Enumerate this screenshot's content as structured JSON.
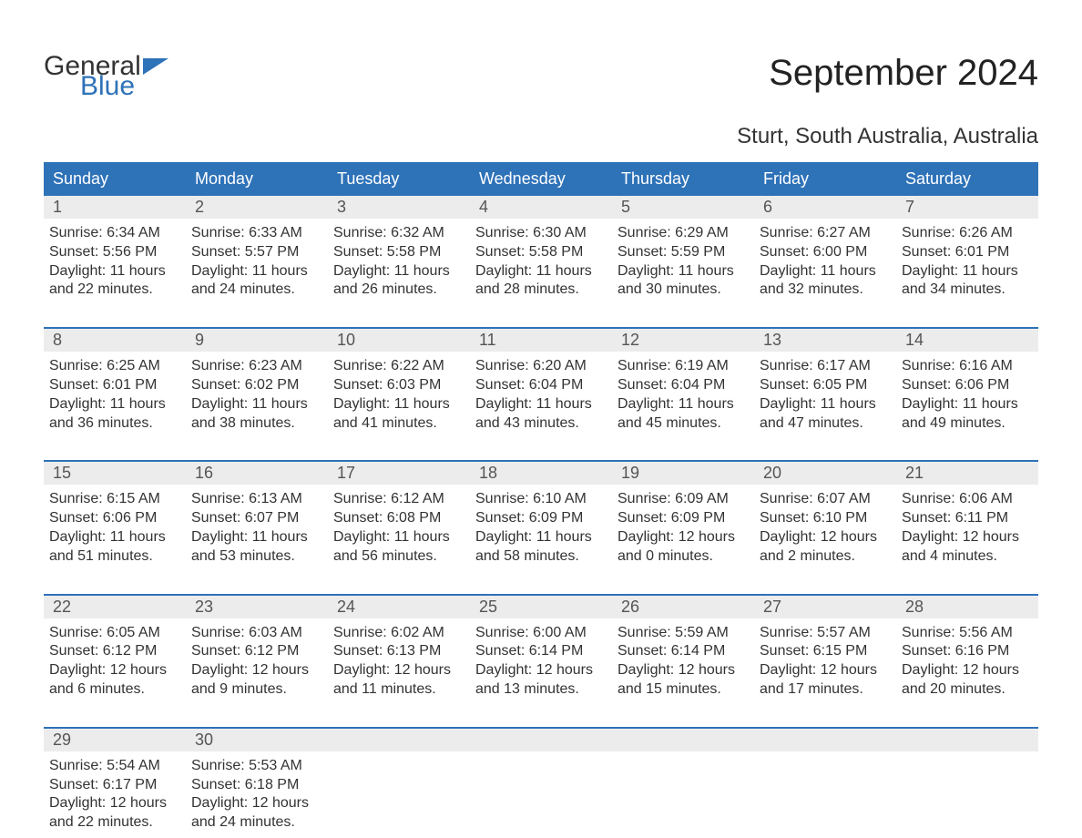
{
  "logo": {
    "text1": "General",
    "text2": "Blue"
  },
  "title": "September 2024",
  "subtitle": "Sturt, South Australia, Australia",
  "colors": {
    "header_bg": "#2e72b8",
    "header_text": "#ffffff",
    "date_bg": "#ececec",
    "date_border": "#2e72b8",
    "body_text": "#333333",
    "logo_blue": "#2e72b8",
    "background": "#ffffff"
  },
  "day_headers": [
    "Sunday",
    "Monday",
    "Tuesday",
    "Wednesday",
    "Thursday",
    "Friday",
    "Saturday"
  ],
  "weeks": [
    [
      {
        "date": "1",
        "sunrise": "Sunrise: 6:34 AM",
        "sunset": "Sunset: 5:56 PM",
        "daylight1": "Daylight: 11 hours",
        "daylight2": "and 22 minutes."
      },
      {
        "date": "2",
        "sunrise": "Sunrise: 6:33 AM",
        "sunset": "Sunset: 5:57 PM",
        "daylight1": "Daylight: 11 hours",
        "daylight2": "and 24 minutes."
      },
      {
        "date": "3",
        "sunrise": "Sunrise: 6:32 AM",
        "sunset": "Sunset: 5:58 PM",
        "daylight1": "Daylight: 11 hours",
        "daylight2": "and 26 minutes."
      },
      {
        "date": "4",
        "sunrise": "Sunrise: 6:30 AM",
        "sunset": "Sunset: 5:58 PM",
        "daylight1": "Daylight: 11 hours",
        "daylight2": "and 28 minutes."
      },
      {
        "date": "5",
        "sunrise": "Sunrise: 6:29 AM",
        "sunset": "Sunset: 5:59 PM",
        "daylight1": "Daylight: 11 hours",
        "daylight2": "and 30 minutes."
      },
      {
        "date": "6",
        "sunrise": "Sunrise: 6:27 AM",
        "sunset": "Sunset: 6:00 PM",
        "daylight1": "Daylight: 11 hours",
        "daylight2": "and 32 minutes."
      },
      {
        "date": "7",
        "sunrise": "Sunrise: 6:26 AM",
        "sunset": "Sunset: 6:01 PM",
        "daylight1": "Daylight: 11 hours",
        "daylight2": "and 34 minutes."
      }
    ],
    [
      {
        "date": "8",
        "sunrise": "Sunrise: 6:25 AM",
        "sunset": "Sunset: 6:01 PM",
        "daylight1": "Daylight: 11 hours",
        "daylight2": "and 36 minutes."
      },
      {
        "date": "9",
        "sunrise": "Sunrise: 6:23 AM",
        "sunset": "Sunset: 6:02 PM",
        "daylight1": "Daylight: 11 hours",
        "daylight2": "and 38 minutes."
      },
      {
        "date": "10",
        "sunrise": "Sunrise: 6:22 AM",
        "sunset": "Sunset: 6:03 PM",
        "daylight1": "Daylight: 11 hours",
        "daylight2": "and 41 minutes."
      },
      {
        "date": "11",
        "sunrise": "Sunrise: 6:20 AM",
        "sunset": "Sunset: 6:04 PM",
        "daylight1": "Daylight: 11 hours",
        "daylight2": "and 43 minutes."
      },
      {
        "date": "12",
        "sunrise": "Sunrise: 6:19 AM",
        "sunset": "Sunset: 6:04 PM",
        "daylight1": "Daylight: 11 hours",
        "daylight2": "and 45 minutes."
      },
      {
        "date": "13",
        "sunrise": "Sunrise: 6:17 AM",
        "sunset": "Sunset: 6:05 PM",
        "daylight1": "Daylight: 11 hours",
        "daylight2": "and 47 minutes."
      },
      {
        "date": "14",
        "sunrise": "Sunrise: 6:16 AM",
        "sunset": "Sunset: 6:06 PM",
        "daylight1": "Daylight: 11 hours",
        "daylight2": "and 49 minutes."
      }
    ],
    [
      {
        "date": "15",
        "sunrise": "Sunrise: 6:15 AM",
        "sunset": "Sunset: 6:06 PM",
        "daylight1": "Daylight: 11 hours",
        "daylight2": "and 51 minutes."
      },
      {
        "date": "16",
        "sunrise": "Sunrise: 6:13 AM",
        "sunset": "Sunset: 6:07 PM",
        "daylight1": "Daylight: 11 hours",
        "daylight2": "and 53 minutes."
      },
      {
        "date": "17",
        "sunrise": "Sunrise: 6:12 AM",
        "sunset": "Sunset: 6:08 PM",
        "daylight1": "Daylight: 11 hours",
        "daylight2": "and 56 minutes."
      },
      {
        "date": "18",
        "sunrise": "Sunrise: 6:10 AM",
        "sunset": "Sunset: 6:09 PM",
        "daylight1": "Daylight: 11 hours",
        "daylight2": "and 58 minutes."
      },
      {
        "date": "19",
        "sunrise": "Sunrise: 6:09 AM",
        "sunset": "Sunset: 6:09 PM",
        "daylight1": "Daylight: 12 hours",
        "daylight2": "and 0 minutes."
      },
      {
        "date": "20",
        "sunrise": "Sunrise: 6:07 AM",
        "sunset": "Sunset: 6:10 PM",
        "daylight1": "Daylight: 12 hours",
        "daylight2": "and 2 minutes."
      },
      {
        "date": "21",
        "sunrise": "Sunrise: 6:06 AM",
        "sunset": "Sunset: 6:11 PM",
        "daylight1": "Daylight: 12 hours",
        "daylight2": "and 4 minutes."
      }
    ],
    [
      {
        "date": "22",
        "sunrise": "Sunrise: 6:05 AM",
        "sunset": "Sunset: 6:12 PM",
        "daylight1": "Daylight: 12 hours",
        "daylight2": "and 6 minutes."
      },
      {
        "date": "23",
        "sunrise": "Sunrise: 6:03 AM",
        "sunset": "Sunset: 6:12 PM",
        "daylight1": "Daylight: 12 hours",
        "daylight2": "and 9 minutes."
      },
      {
        "date": "24",
        "sunrise": "Sunrise: 6:02 AM",
        "sunset": "Sunset: 6:13 PM",
        "daylight1": "Daylight: 12 hours",
        "daylight2": "and 11 minutes."
      },
      {
        "date": "25",
        "sunrise": "Sunrise: 6:00 AM",
        "sunset": "Sunset: 6:14 PM",
        "daylight1": "Daylight: 12 hours",
        "daylight2": "and 13 minutes."
      },
      {
        "date": "26",
        "sunrise": "Sunrise: 5:59 AM",
        "sunset": "Sunset: 6:14 PM",
        "daylight1": "Daylight: 12 hours",
        "daylight2": "and 15 minutes."
      },
      {
        "date": "27",
        "sunrise": "Sunrise: 5:57 AM",
        "sunset": "Sunset: 6:15 PM",
        "daylight1": "Daylight: 12 hours",
        "daylight2": "and 17 minutes."
      },
      {
        "date": "28",
        "sunrise": "Sunrise: 5:56 AM",
        "sunset": "Sunset: 6:16 PM",
        "daylight1": "Daylight: 12 hours",
        "daylight2": "and 20 minutes."
      }
    ],
    [
      {
        "date": "29",
        "sunrise": "Sunrise: 5:54 AM",
        "sunset": "Sunset: 6:17 PM",
        "daylight1": "Daylight: 12 hours",
        "daylight2": "and 22 minutes."
      },
      {
        "date": "30",
        "sunrise": "Sunrise: 5:53 AM",
        "sunset": "Sunset: 6:18 PM",
        "daylight1": "Daylight: 12 hours",
        "daylight2": "and 24 minutes."
      },
      {
        "date": "",
        "sunrise": "",
        "sunset": "",
        "daylight1": "",
        "daylight2": ""
      },
      {
        "date": "",
        "sunrise": "",
        "sunset": "",
        "daylight1": "",
        "daylight2": ""
      },
      {
        "date": "",
        "sunrise": "",
        "sunset": "",
        "daylight1": "",
        "daylight2": ""
      },
      {
        "date": "",
        "sunrise": "",
        "sunset": "",
        "daylight1": "",
        "daylight2": ""
      },
      {
        "date": "",
        "sunrise": "",
        "sunset": "",
        "daylight1": "",
        "daylight2": ""
      }
    ]
  ]
}
